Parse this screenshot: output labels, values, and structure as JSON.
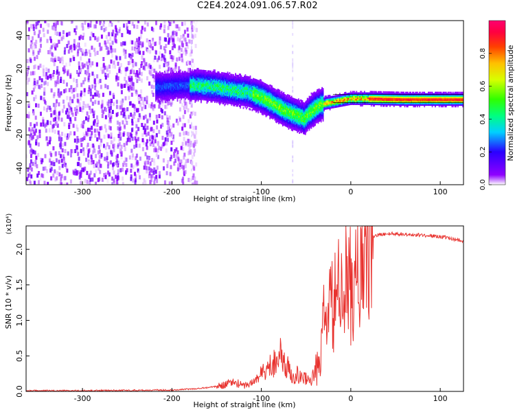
{
  "title": "C2E4.2024.091.06.57.R02",
  "chart_data": [
    {
      "type": "heatmap",
      "name": "spectrogram",
      "xlabel": "Height of straight line (km)",
      "ylabel": "Frequency (Hz)",
      "xlim": [
        -363,
        126
      ],
      "ylim": [
        -50,
        49
      ],
      "xticks": [
        -300,
        -200,
        -100,
        0,
        100
      ],
      "xticklabels": [
        "-300",
        "-200",
        "-100",
        "0",
        "100"
      ],
      "yticks": [
        -40,
        -20,
        0,
        20,
        40
      ],
      "yticklabels": [
        "-40",
        "-20",
        "0",
        "20",
        "40"
      ],
      "colorbar": {
        "label": "Normalized spectral amplitude",
        "range": [
          0,
          1
        ],
        "ticks": [
          0.0,
          0.2,
          0.4,
          0.6,
          0.8
        ],
        "ticklabels": [
          "0.0",
          "0.2",
          "0.4",
          "0.6",
          "0.8"
        ],
        "colormap": "rainbow (white-violet-blue-cyan-green-yellow-orange-red-magenta)"
      },
      "ridge_center_hz": {
        "x": [
          -215,
          -190,
          -170,
          -150,
          -130,
          -115,
          -100,
          -90,
          -80,
          -70,
          -60,
          -52,
          -45,
          -38,
          -30,
          -20,
          -10,
          0,
          20,
          60,
          100,
          126
        ],
        "y": [
          9,
          10,
          10,
          9,
          7,
          6,
          3,
          0,
          -3,
          -6,
          -8,
          -10,
          -6,
          -3,
          -1,
          0,
          1,
          2,
          2,
          1.5,
          1.5,
          1.5
        ]
      },
      "noise_region_km": [
        -363,
        -180
      ]
    },
    {
      "type": "line",
      "name": "snr",
      "xlabel": "Height of straight line (km)",
      "ylabel": "SNR (10 * v/v)",
      "y_multiplier": "(x10⁴)",
      "xlim": [
        -363,
        126
      ],
      "ylim": [
        0,
        2.33
      ],
      "xticks": [
        -300,
        -200,
        -100,
        0,
        100
      ],
      "xticklabels": [
        "-300",
        "-200",
        "-100",
        "0",
        "100"
      ],
      "yticks": [
        0.0,
        0.5,
        1.0,
        1.5,
        2.0
      ],
      "yticklabels": [
        "0.0",
        "0.5",
        "1.0",
        "1.5",
        "2.0"
      ],
      "color": "#e8322e",
      "series": [
        {
          "name": "SNR",
          "x": [
            -363,
            -300,
            -250,
            -200,
            -170,
            -150,
            -130,
            -120,
            -110,
            -100,
            -95,
            -90,
            -85,
            -80,
            -75,
            -70,
            -65,
            -60,
            -55,
            -50,
            -45,
            -40,
            -35,
            -32,
            -30,
            -25,
            -20,
            -15,
            -10,
            -5,
            0,
            5,
            10,
            15,
            20,
            25,
            30,
            40,
            50,
            60,
            80,
            100,
            126
          ],
          "y": [
            0.01,
            0.01,
            0.015,
            0.02,
            0.04,
            0.07,
            0.13,
            0.08,
            0.12,
            0.25,
            0.3,
            0.35,
            0.45,
            0.55,
            0.38,
            0.32,
            0.22,
            0.25,
            0.18,
            0.2,
            0.15,
            0.25,
            0.4,
            0.7,
            1.05,
            1.1,
            1.2,
            1.35,
            1.4,
            1.55,
            1.5,
            1.45,
            1.7,
            2.05,
            2.15,
            2.18,
            2.2,
            2.22,
            2.22,
            2.21,
            2.2,
            2.18,
            2.12
          ]
        }
      ]
    }
  ]
}
